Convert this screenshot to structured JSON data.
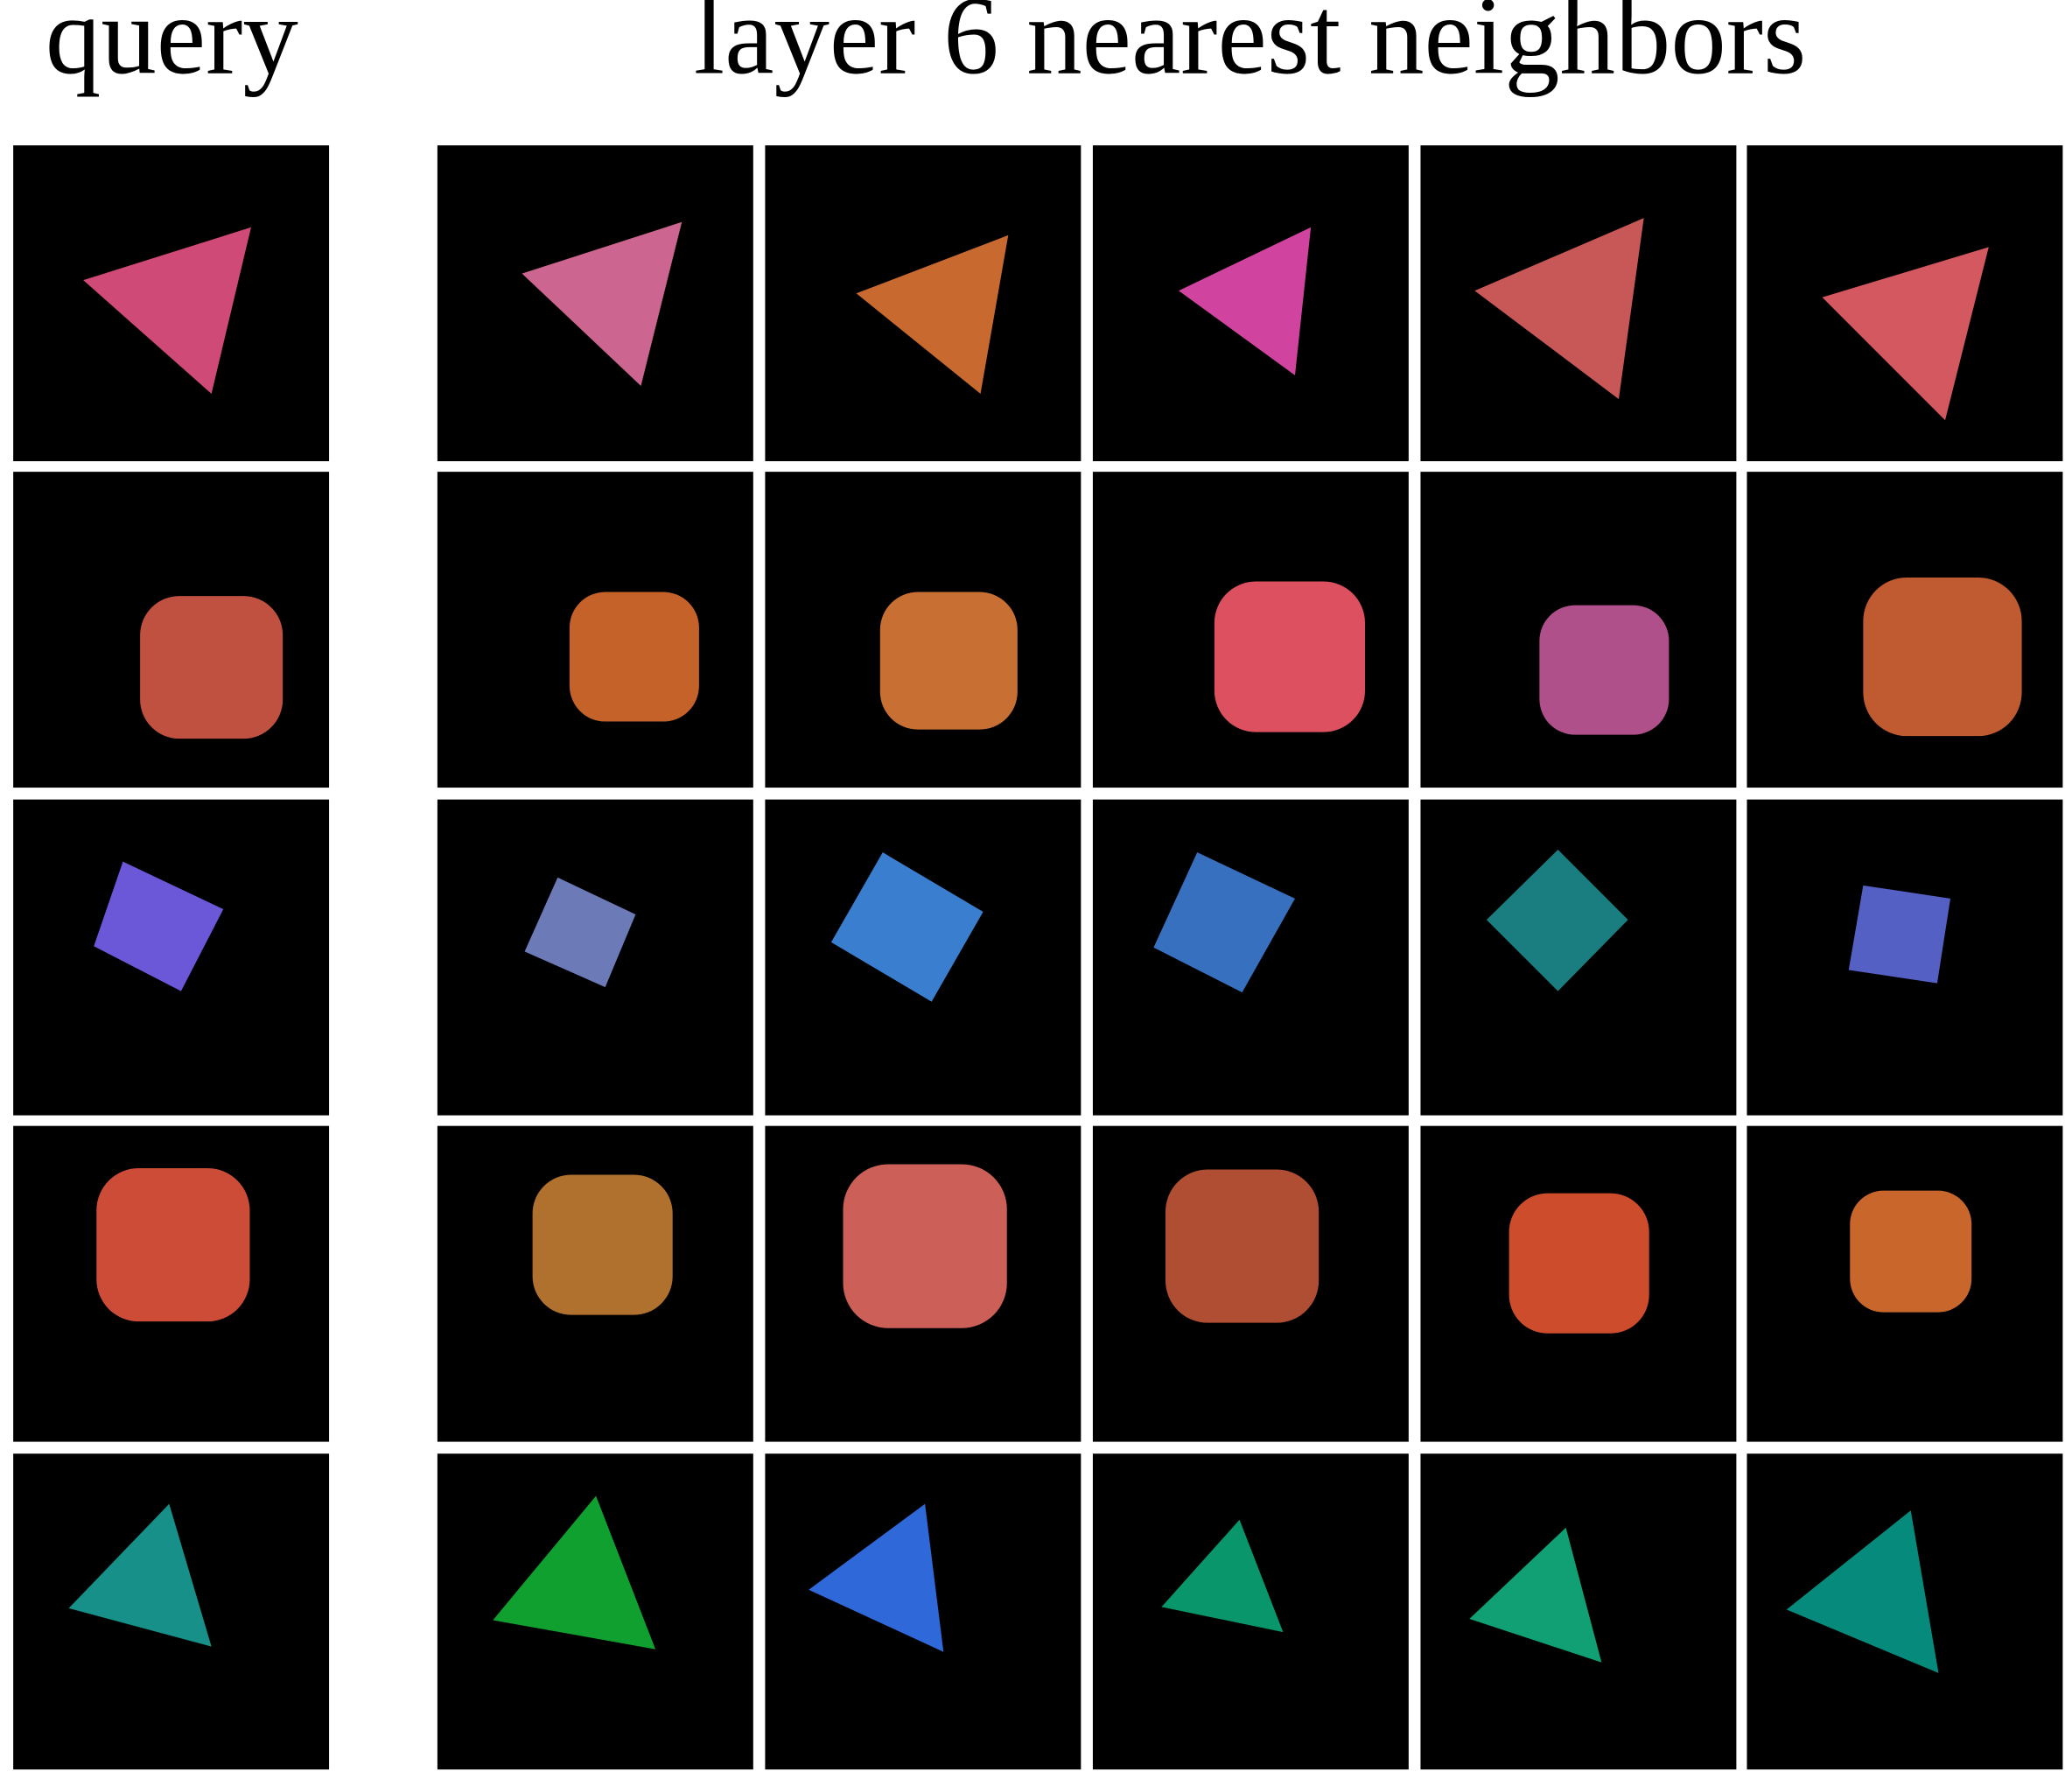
{
  "header": {
    "query_label": "query",
    "neighbors_label": "layer 6 nearest neighbors"
  }
}
